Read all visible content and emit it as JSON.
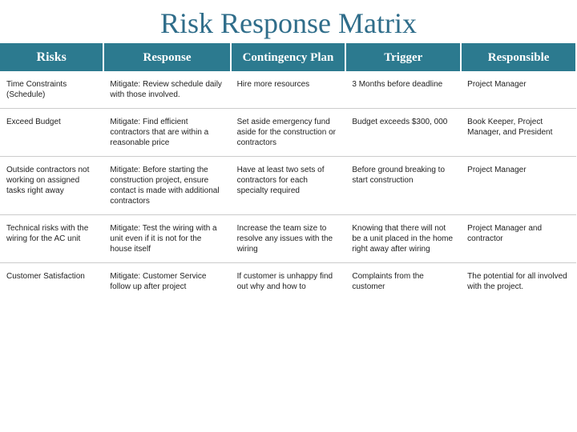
{
  "title": "Risk Response Matrix",
  "headers": {
    "risks": "Risks",
    "response": "Response",
    "contingency": "Contingency Plan",
    "trigger": "Trigger",
    "responsible": "Responsible"
  },
  "rows": [
    {
      "risk": "Time Constraints (Schedule)",
      "response": "Mitigate: Review schedule daily with those involved.",
      "contingency": "Hire more resources",
      "trigger": "3 Months before deadline",
      "responsible": "Project Manager"
    },
    {
      "risk": "Exceed Budget",
      "response": "Mitigate: Find efficient contractors that are within a reasonable price",
      "contingency": "Set aside emergency fund aside for the construction or contractors",
      "trigger": "Budget exceeds $300, 000",
      "responsible": "Book Keeper, Project Manager, and President"
    },
    {
      "risk": "Outside contractors not working on assigned tasks right away",
      "response": "Mitigate: Before starting the construction project, ensure contact is made with additional contractors",
      "contingency": "Have at least two sets of contractors for each specialty required",
      "trigger": "Before ground breaking to start construction",
      "responsible": "Project Manager"
    },
    {
      "risk": "Technical risks with the wiring for the AC unit",
      "response": "Mitigate: Test the wiring with a unit even if it is not for the house itself",
      "contingency": "Increase the team size to resolve any issues with the wiring",
      "trigger": "Knowing that there will not be a unit placed in the home right away after wiring",
      "responsible": "Project Manager and contractor"
    },
    {
      "risk": "Customer Satisfaction",
      "response": "Mitigate: Customer Service follow up after project",
      "contingency": "If customer is unhappy find out why and how to",
      "trigger": "Complaints from the customer",
      "responsible": "The potential for all involved with the project."
    }
  ],
  "styling": {
    "title_color": "#2f6d8a",
    "title_fontsize": 36,
    "header_bg": "#2c7a8f",
    "header_text_color": "#ffffff",
    "header_fontsize": 15,
    "cell_fontsize": 10,
    "cell_text_color": "#222222",
    "row_border_color": "#cccccc",
    "background_color": "#ffffff",
    "column_widths_pct": [
      18,
      22,
      20,
      20,
      20
    ],
    "table_type": "table"
  }
}
